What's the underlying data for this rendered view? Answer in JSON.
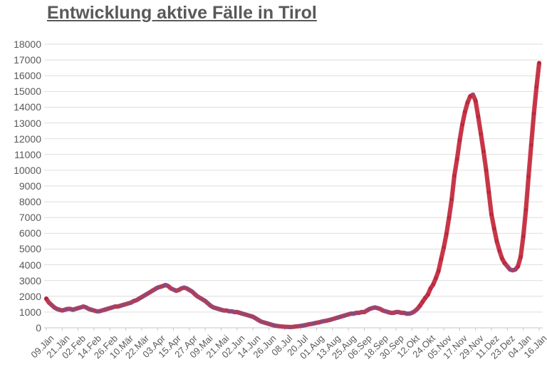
{
  "chart_data": {
    "type": "line",
    "title": "Entwicklung aktive Fälle in Tirol",
    "series_name": "aktive Fälle",
    "xlabel": "",
    "ylabel": "",
    "ylim": [
      0,
      18000
    ],
    "y_tick_step": 1000,
    "y_tick_labels": [
      "0",
      "1000",
      "2000",
      "3000",
      "4000",
      "5000",
      "6000",
      "7000",
      "8000",
      "9000",
      "10000",
      "11000",
      "12000",
      "13000",
      "14000",
      "15000",
      "16000",
      "17000",
      "18000"
    ],
    "x_tick_labels": [
      "09.Jän",
      "21.Jän",
      "02.Feb",
      "14.Feb",
      "26.Feb",
      "10.Mär",
      "22.Mär",
      "03.Apr",
      "15.Apr",
      "27.Apr",
      "09.Mai",
      "21.Mai",
      "02.Jun",
      "14.Jun",
      "26.Jun",
      "08.Jul",
      "20.Jul",
      "01.Aug",
      "13.Aug",
      "25.Aug",
      "06.Sep",
      "18.Sep",
      "30.Sep",
      "12.Okt",
      "24.Okt",
      "05.Nov",
      "17.Nov",
      "29.Nov",
      "11.Dez",
      "23.Dez",
      "04.Jän",
      "16.Jän"
    ],
    "x_tick_interval_days": 12,
    "points_every_n_days": 2,
    "grid": "horizontal",
    "legend": "none",
    "values": [
      1850,
      1600,
      1450,
      1300,
      1200,
      1150,
      1100,
      1150,
      1200,
      1200,
      1150,
      1200,
      1250,
      1300,
      1350,
      1300,
      1200,
      1150,
      1100,
      1050,
      1050,
      1100,
      1150,
      1200,
      1250,
      1300,
      1350,
      1350,
      1400,
      1450,
      1500,
      1550,
      1600,
      1700,
      1750,
      1850,
      1950,
      2050,
      2150,
      2250,
      2350,
      2450,
      2550,
      2600,
      2650,
      2720,
      2650,
      2500,
      2430,
      2350,
      2400,
      2500,
      2550,
      2500,
      2400,
      2300,
      2150,
      2000,
      1900,
      1800,
      1700,
      1550,
      1400,
      1300,
      1250,
      1200,
      1150,
      1100,
      1100,
      1050,
      1050,
      1000,
      1000,
      950,
      900,
      850,
      800,
      750,
      700,
      600,
      500,
      400,
      350,
      300,
      250,
      200,
      150,
      120,
      100,
      80,
      70,
      60,
      50,
      60,
      80,
      100,
      120,
      150,
      180,
      220,
      250,
      280,
      320,
      350,
      400,
      430,
      460,
      500,
      550,
      600,
      650,
      700,
      750,
      800,
      850,
      900,
      900,
      950,
      950,
      1000,
      1000,
      1100,
      1200,
      1250,
      1300,
      1250,
      1200,
      1100,
      1050,
      1000,
      950,
      950,
      1000,
      1000,
      950,
      950,
      900,
      900,
      950,
      1050,
      1200,
      1400,
      1650,
      1900,
      2100,
      2500,
      2750,
      3150,
      3600,
      4350,
      5100,
      5950,
      7000,
      8150,
      9650,
      10700,
      11900,
      12900,
      13700,
      14300,
      14700,
      14800,
      14400,
      13400,
      12300,
      11200,
      10000,
      8600,
      7200,
      6300,
      5500,
      4900,
      4400,
      4100,
      3900,
      3700,
      3650,
      3700,
      3900,
      4500,
      5800,
      7500,
      9600,
      11600,
      13600,
      15300,
      16800
    ],
    "style": {
      "title_color": "#595959",
      "label_color": "#595959",
      "grid_color": "#dedede",
      "axis_color": "#c6c6c6",
      "line_color": "#c43a4e",
      "line_top_color": "#d0303e",
      "marker_flat_color": "#6d5795",
      "marker_steep_color": "#a5233a",
      "steep_threshold_per_day": 100
    }
  }
}
